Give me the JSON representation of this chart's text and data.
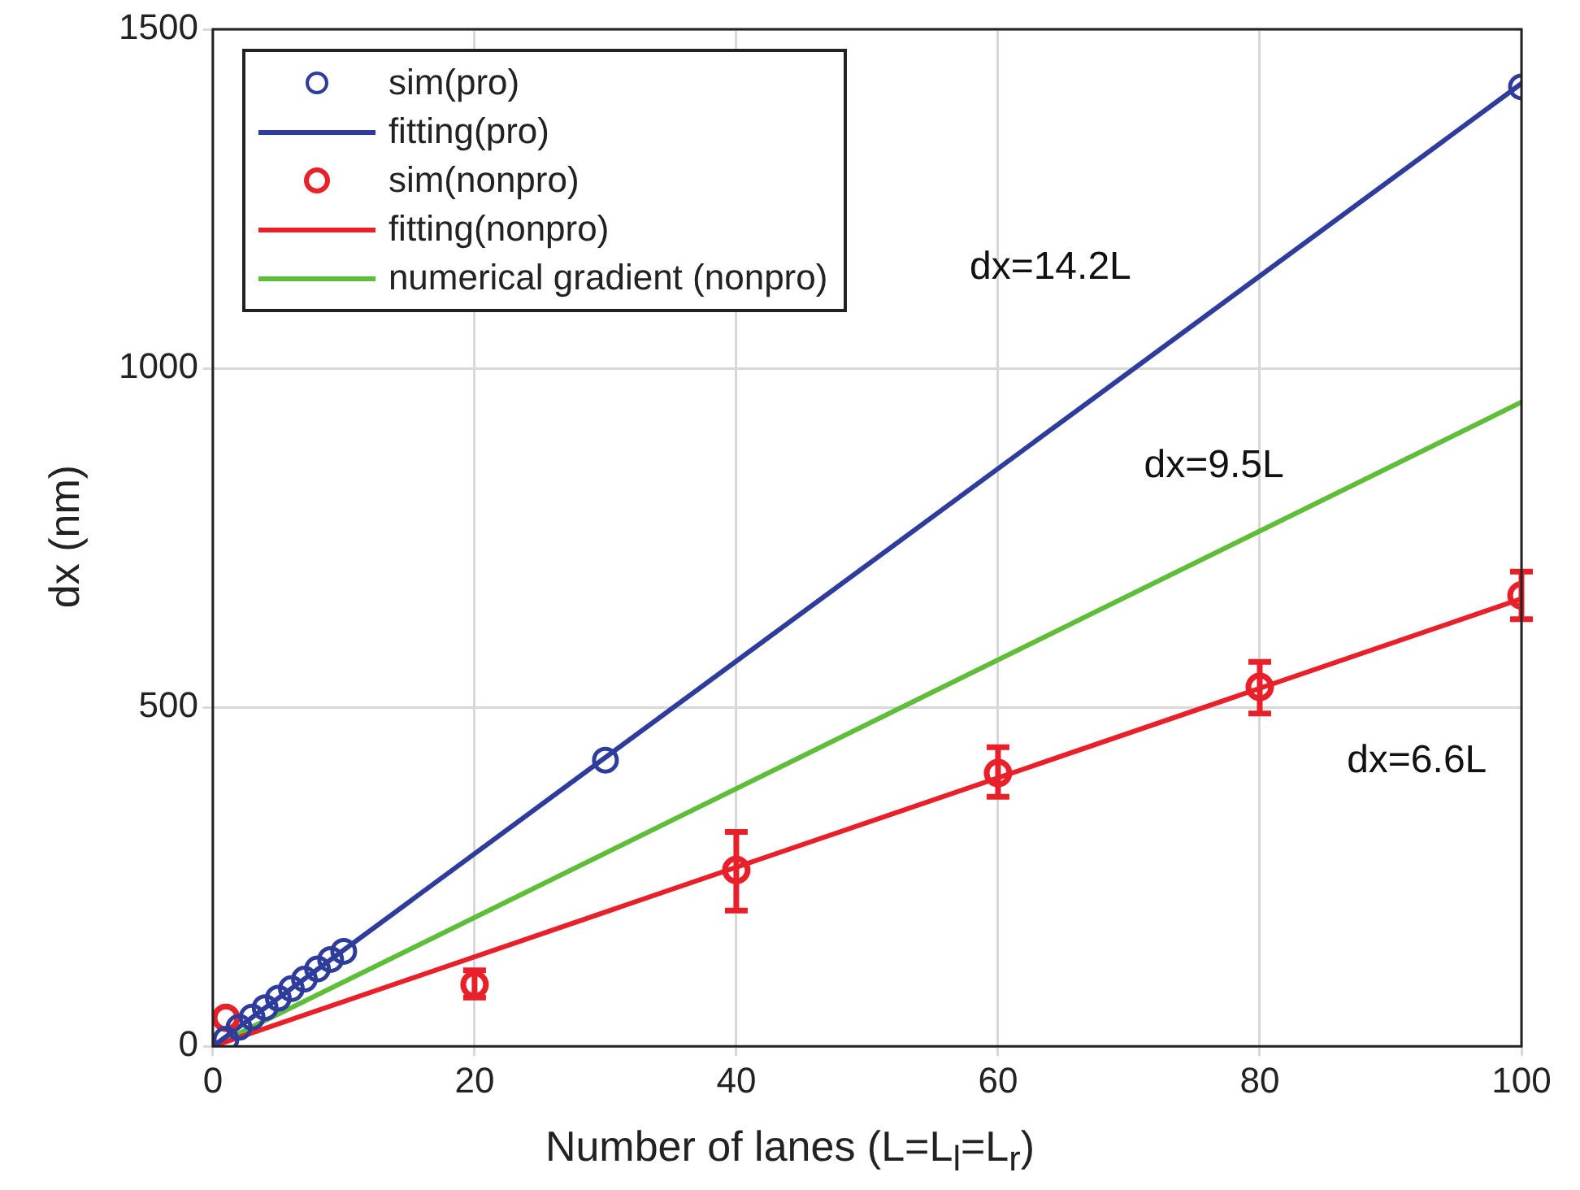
{
  "chart_data": {
    "type": "scatter",
    "xlabel": "Number of lanes (L=L$_{l}$=L$_{r}$)",
    "ylabel": "dx (nm)",
    "xlim": [
      0,
      100
    ],
    "xticks": [
      0,
      20,
      40,
      60,
      80,
      100
    ],
    "ylim": [
      0,
      1500
    ],
    "yticks": [
      0,
      500,
      1000,
      1500
    ],
    "grid": true,
    "legend": "top left",
    "series": [
      {
        "name": "sim(pro)",
        "marker": "circle",
        "color": "#2e3d9c",
        "x": [
          1,
          2,
          3,
          4,
          5,
          6,
          7,
          8,
          9,
          10,
          30,
          100
        ],
        "values": [
          10,
          28,
          43,
          57,
          71,
          85,
          99,
          114,
          128,
          140,
          422,
          1415
        ]
      },
      {
        "name": "fitting(pro)",
        "type": "line",
        "marker": "none",
        "color": "#2e3d9c",
        "x": [
          0,
          100
        ],
        "values": [
          0,
          1420
        ]
      },
      {
        "name": "sim(nonpro)",
        "marker": "circle",
        "color": "#e8202a",
        "x": [
          1,
          20,
          40,
          60,
          80,
          100
        ],
        "values": [
          42,
          91,
          260,
          403,
          530,
          665
        ],
        "errors": [
          null,
          [
            72,
            112
          ],
          [
            200,
            316
          ],
          [
            368,
            441
          ],
          [
            491,
            567
          ],
          [
            630,
            700
          ]
        ]
      },
      {
        "name": "fitting(nonpro)",
        "type": "line",
        "marker": "none",
        "color": "#e8202a",
        "x": [
          0,
          100
        ],
        "values": [
          0,
          660
        ]
      },
      {
        "name": "numerical gradient (nonpro)",
        "type": "line",
        "marker": "none",
        "color": "#5fbd3a",
        "x": [
          0,
          100
        ],
        "values": [
          0,
          950
        ]
      }
    ],
    "annotations": [
      "dx=14.2L",
      "dx=9.5L",
      "dx=6.6L"
    ]
  }
}
